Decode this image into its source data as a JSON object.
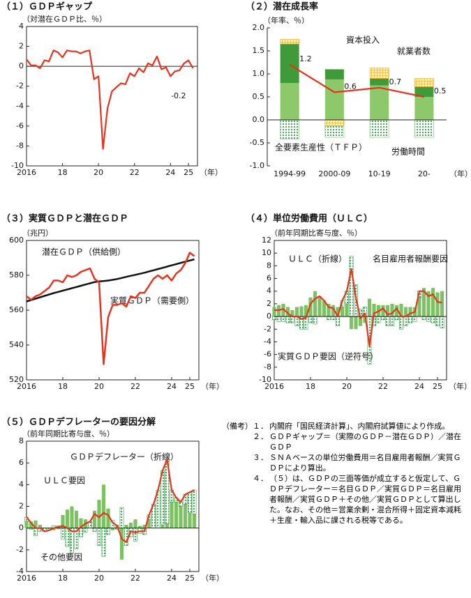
{
  "chart_data": [
    {
      "type": "line",
      "title": "（１）ＧＤＰギャップ",
      "ylabel": "（対潜在ＧＤＰ比、％）",
      "xlabel": "（年）",
      "frame": true,
      "x": [
        2016,
        2016.25,
        2016.5,
        2016.75,
        2017,
        2017.25,
        2017.5,
        2017.75,
        2018,
        2018.25,
        2018.5,
        2018.75,
        2019,
        2019.25,
        2019.5,
        2019.75,
        2020,
        2020.25,
        2020.5,
        2020.75,
        2021,
        2021.25,
        2021.5,
        2021.75,
        2022,
        2022.25,
        2022.5,
        2022.75,
        2023,
        2023.25,
        2023.5,
        2023.75,
        2024,
        2024.25,
        2024.5,
        2024.75,
        2025,
        2025.25
      ],
      "values": [
        0.7,
        0.1,
        0.1,
        -0.2,
        0.6,
        0.5,
        1.6,
        1.4,
        0.9,
        1.6,
        1.5,
        1.5,
        1.3,
        1.5,
        1.6,
        -1.3,
        -1.0,
        -8.3,
        -4.2,
        -2.5,
        -2.1,
        -1.7,
        -1.8,
        -0.7,
        -1.0,
        -0.2,
        -0.6,
        0.3,
        0.1,
        1.0,
        -0.3,
        -0.1,
        -1.0,
        -0.5,
        -0.4,
        0.3,
        0.6,
        -0.2
      ],
      "color": "#e8321e",
      "annotations": [
        "-0.2"
      ],
      "xlim": [
        2016,
        2025.5
      ],
      "xticks": [
        2016,
        {
          "value": 2018,
          "label": "18"
        },
        {
          "value": 2020,
          "label": "20"
        },
        {
          "value": 2022,
          "label": "22"
        },
        {
          "value": 2024,
          "label": "24"
        },
        {
          "value": 2025,
          "label": "25"
        }
      ],
      "ylim": [
        -10,
        4
      ],
      "yticks": [
        -10,
        -8,
        -6,
        -4,
        -2,
        0,
        2,
        4
      ],
      "grid": false
    },
    {
      "type": "bar",
      "title": "（２）潜在成長率",
      "ylabel": "（年率、％）",
      "xlabel": "（年）",
      "frame": false,
      "categories": [
        "1994-99",
        "2000-09",
        "10-19",
        "20-"
      ],
      "series": [
        {
          "name": "全要素生産性（ＴＦＰ）",
          "color": "#8dc86a",
          "pattern": "solid",
          "values": [
            0.8,
            0.88,
            0.75,
            0.5
          ]
        },
        {
          "name": "資本投入",
          "color": "#3f9a3a",
          "pattern": "solid",
          "values": [
            0.85,
            0.22,
            0.15,
            0.22
          ]
        },
        {
          "name": "就業者数",
          "color": "#f5a623",
          "pattern": "grid",
          "values": [
            0.1,
            -0.13,
            0.23,
            0.18
          ]
        },
        {
          "name": "労働時間",
          "color": "#7cc262",
          "pattern": "dots",
          "values": [
            -0.42,
            -0.25,
            -0.38,
            -0.38
          ]
        },
        {
          "type": "line",
          "color": "#e8321e",
          "values": [
            1.2,
            0.6,
            0.7,
            0.5
          ],
          "value_labels": [
            "1.2",
            "0.6",
            "0.7",
            "0.5"
          ]
        }
      ],
      "ylim": [
        -1,
        2
      ],
      "yticks": [
        {
          "value": -1,
          "label": "-1.0"
        },
        -0.5,
        {
          "value": 0,
          "label": "0.0"
        },
        0.5,
        {
          "value": 1,
          "label": "1.0"
        },
        1.5,
        {
          "value": 2,
          "label": "2.0"
        }
      ],
      "grid": false
    },
    {
      "type": "line",
      "title": "（３）実質ＧＤＰと潜在ＧＤＰ",
      "ylabel": "（兆円）",
      "xlabel": "（年）",
      "frame": true,
      "x": [
        2016,
        2016.25,
        2016.5,
        2016.75,
        2017,
        2017.25,
        2017.5,
        2017.75,
        2018,
        2018.25,
        2018.5,
        2018.75,
        2019,
        2019.25,
        2019.5,
        2019.75,
        2020,
        2020.25,
        2020.5,
        2020.75,
        2021,
        2021.25,
        2021.5,
        2021.75,
        2022,
        2022.25,
        2022.5,
        2022.75,
        2023,
        2023.25,
        2023.5,
        2023.75,
        2024,
        2024.25,
        2024.5,
        2024.75,
        2025,
        2025.25
      ],
      "series": [
        {
          "name": "潜在ＧＤＰ（供給側）",
          "color": "#111111",
          "values": [
            565.0,
            565.8,
            566.6,
            567.4,
            568.2,
            569.0,
            569.8,
            570.5,
            571.2,
            571.9,
            572.6,
            573.3,
            574.0,
            574.7,
            575.4,
            576.1,
            576.5,
            576.7,
            577.0,
            577.4,
            577.9,
            578.5,
            579.1,
            579.7,
            580.3,
            580.9,
            581.5,
            582.2,
            582.9,
            583.6,
            584.3,
            585.0,
            585.7,
            586.4,
            587.1,
            587.8,
            588.5,
            589.2
          ]
        },
        {
          "name": "実質ＧＤＰ（需要側）",
          "color": "#e8321e",
          "values": [
            568,
            566,
            568,
            569,
            571,
            573,
            577,
            577,
            576,
            580,
            579,
            580,
            582,
            583,
            584,
            578,
            576,
            529,
            556,
            563,
            563,
            564,
            562,
            568,
            567,
            570,
            570,
            574,
            578,
            580,
            578,
            580,
            577,
            581,
            583,
            587,
            593,
            591
          ]
        }
      ],
      "xlim": [
        2016,
        2025.5
      ],
      "xticks": [
        2016,
        {
          "value": 2018,
          "label": "18"
        },
        {
          "value": 2020,
          "label": "20"
        },
        {
          "value": 2022,
          "label": "22"
        },
        {
          "value": 2024,
          "label": "24"
        },
        {
          "value": 2025,
          "label": "25"
        }
      ],
      "ylim": [
        520,
        600
      ],
      "yticks": [
        520,
        540,
        560,
        580,
        600
      ],
      "grid": false
    },
    {
      "type": "bar",
      "title": "（４）単位労働費用（ＵＬＣ）",
      "ylabel": "（前年同期比寄与度、％）",
      "xlabel": "（年）",
      "frame": true,
      "x": [
        2016,
        2016.25,
        2016.5,
        2016.75,
        2017,
        2017.25,
        2017.5,
        2017.75,
        2018,
        2018.25,
        2018.5,
        2018.75,
        2019,
        2019.25,
        2019.5,
        2019.75,
        2020,
        2020.25,
        2020.5,
        2020.75,
        2021,
        2021.25,
        2021.5,
        2021.75,
        2022,
        2022.25,
        2022.5,
        2022.75,
        2023,
        2023.25,
        2023.5,
        2023.75,
        2024,
        2024.25,
        2024.5,
        2024.75,
        2025,
        2025.25
      ],
      "series": [
        {
          "name": "名目雇用者報酬要因",
          "color": "#7cc262",
          "pattern": "solid",
          "values": [
            1.5,
            1.8,
            2.0,
            1.5,
            1.0,
            1.5,
            1.6,
            1.8,
            3.0,
            4.0,
            3.2,
            2.5,
            2.0,
            1.8,
            1.5,
            1.5,
            2.0,
            -2.0,
            -2.0,
            -1.5,
            -1.0,
            2.8,
            2.0,
            1.8,
            1.8,
            1.8,
            2.0,
            1.8,
            2.0,
            1.5,
            1.5,
            1.5,
            3.0,
            4.5,
            4.0,
            4.5,
            3.8,
            4.0
          ]
        },
        {
          "name": "実質ＧＤＰ要因（逆符号）",
          "color": "#2f9e44",
          "pattern": "dots",
          "values": [
            -0.5,
            -0.8,
            -0.8,
            -1.0,
            -1.0,
            -1.5,
            -2.0,
            -2.0,
            -1.0,
            -1.2,
            0.0,
            0.0,
            -0.5,
            -0.5,
            -1.5,
            1.0,
            2.0,
            9.5,
            5.0,
            1.2,
            1.5,
            -7.5,
            -1.5,
            -1.0,
            -0.5,
            -1.5,
            -1.5,
            -0.5,
            -2.0,
            -1.5,
            -1.0,
            -0.8,
            1.0,
            -0.5,
            -0.8,
            -1.0,
            -1.5,
            -1.8
          ]
        },
        {
          "name": "ＵＬＣ（折線）",
          "type": "line",
          "color": "#e8321e",
          "values": [
            1.0,
            1.0,
            1.2,
            0.5,
            0,
            0,
            -0.4,
            -0.2,
            2.0,
            2.8,
            3.2,
            2.5,
            1.5,
            1.3,
            0,
            2.5,
            4.0,
            7.5,
            3.0,
            -0.3,
            0.5,
            -4.7,
            0.5,
            0.8,
            1.3,
            0.3,
            0.5,
            1.3,
            0,
            0,
            0.5,
            0.7,
            4.0,
            4.0,
            3.2,
            3.5,
            2.3,
            2.2
          ]
        }
      ],
      "xlim": [
        2016,
        2025.5
      ],
      "xticks": [
        2016,
        {
          "value": 2018,
          "label": "18"
        },
        {
          "value": 2020,
          "label": "20"
        },
        {
          "value": 2022,
          "label": "22"
        },
        {
          "value": 2024,
          "label": "24"
        },
        {
          "value": 2025,
          "label": "25"
        }
      ],
      "ylim": [
        -10,
        12
      ],
      "yticks": [
        -10,
        -8,
        -6,
        -4,
        -2,
        0,
        2,
        4,
        6,
        8,
        10,
        12
      ],
      "grid": false
    },
    {
      "type": "bar",
      "title": "（５）ＧＤＰデフレーターの要因分解",
      "ylabel": "（前年同期比寄与度、％）",
      "xlabel": "（年）",
      "frame": true,
      "x": [
        2016,
        2016.25,
        2016.5,
        2016.75,
        2017,
        2017.25,
        2017.5,
        2017.75,
        2018,
        2018.25,
        2018.5,
        2018.75,
        2019,
        2019.25,
        2019.5,
        2019.75,
        2020,
        2020.25,
        2020.5,
        2020.75,
        2021,
        2021.25,
        2021.5,
        2021.75,
        2022,
        2022.25,
        2022.5,
        2022.75,
        2023,
        2023.25,
        2023.5,
        2023.75,
        2024,
        2024.25,
        2024.5,
        2024.75,
        2025,
        2025.25
      ],
      "series": [
        {
          "name": "ＵＬＣ要因",
          "color": "#7cc262",
          "pattern": "solid",
          "values": [
            0.6,
            0.6,
            0.7,
            0.3,
            0,
            0,
            -0.2,
            -0.1,
            1.2,
            1.7,
            2.0,
            1.6,
            0.9,
            0.8,
            0,
            1.6,
            2.6,
            4.0,
            1.8,
            -0.2,
            0.3,
            -2.9,
            0.3,
            0.5,
            0.8,
            0.2,
            0.3,
            0.8,
            0,
            0,
            0.3,
            0.4,
            2.4,
            2.4,
            2.0,
            2.2,
            1.4,
            1.3
          ]
        },
        {
          "name": "その他要因",
          "color": "#2f9e44",
          "pattern": "dots",
          "values": [
            0.4,
            -0.1,
            -0.7,
            -0.3,
            -0.3,
            -0.2,
            0.2,
            0.2,
            -1.0,
            -1.7,
            -2.3,
            -1.9,
            -0.8,
            -0.4,
            0.6,
            -0.3,
            -1.6,
            -2.6,
            -0.6,
            0.7,
            -0.1,
            1.9,
            -1.6,
            -0.8,
            -1.2,
            -0.5,
            -0.6,
            0.4,
            2.2,
            3.5,
            5.0,
            5.9,
            1.1,
            0.4,
            0.4,
            0.9,
            1.9,
            2.2
          ]
        },
        {
          "name": "ＧＤＰデフレーター（折線）",
          "type": "line",
          "color": "#e8321e",
          "values": [
            1.0,
            0.5,
            0.0,
            0.0,
            -0.3,
            -0.2,
            0.0,
            0.1,
            0.2,
            0.0,
            -0.3,
            -0.3,
            0.1,
            0.4,
            0.6,
            1.3,
            1.0,
            1.4,
            1.2,
            0.5,
            0.2,
            -1.0,
            -1.3,
            -0.3,
            -0.4,
            -0.3,
            -0.3,
            1.2,
            2.2,
            3.5,
            5.3,
            6.3,
            3.5,
            2.8,
            2.4,
            3.1,
            3.3,
            3.5
          ]
        }
      ],
      "xlim": [
        2016,
        2025.5
      ],
      "xticks": [
        2016,
        {
          "value": 2018,
          "label": "18"
        },
        {
          "value": 2020,
          "label": "20"
        },
        {
          "value": 2022,
          "label": "22"
        },
        {
          "value": 2024,
          "label": "24"
        },
        {
          "value": 2025,
          "label": "25"
        }
      ],
      "ylim": [
        -4,
        8
      ],
      "yticks": [
        -4,
        -2,
        0,
        2,
        4,
        6,
        8
      ],
      "grid": false
    }
  ],
  "notes": {
    "label": "（備考）",
    "items": [
      {
        "num": "１．",
        "text": "内閣府「国民経済計算」、内閣府試算値により作成。"
      },
      {
        "num": "２．",
        "text": "ＧＤＰギャップ＝（実際のＧＤＰ－潜在ＧＤＰ）／潜在ＧＤＰ"
      },
      {
        "num": "３．",
        "text": "ＳＮＡベースの単位労働費用＝名目雇用者報酬／実質ＧＤＰにより算出。"
      },
      {
        "num": "４．",
        "text": "（５）は、ＧＤＰの三面等価が成立すると仮定して、ＧＤＰデフレーター＝名目ＧＤＰ／実質ＧＤＰ＝名目雇用者報酬／実質ＧＤＰ＋その他／実質ＧＤＰとして算出した。なお、その他＝営業余剰・混合所得＋固定資本減耗＋生産・輸入品に課される税等である。"
      }
    ]
  }
}
